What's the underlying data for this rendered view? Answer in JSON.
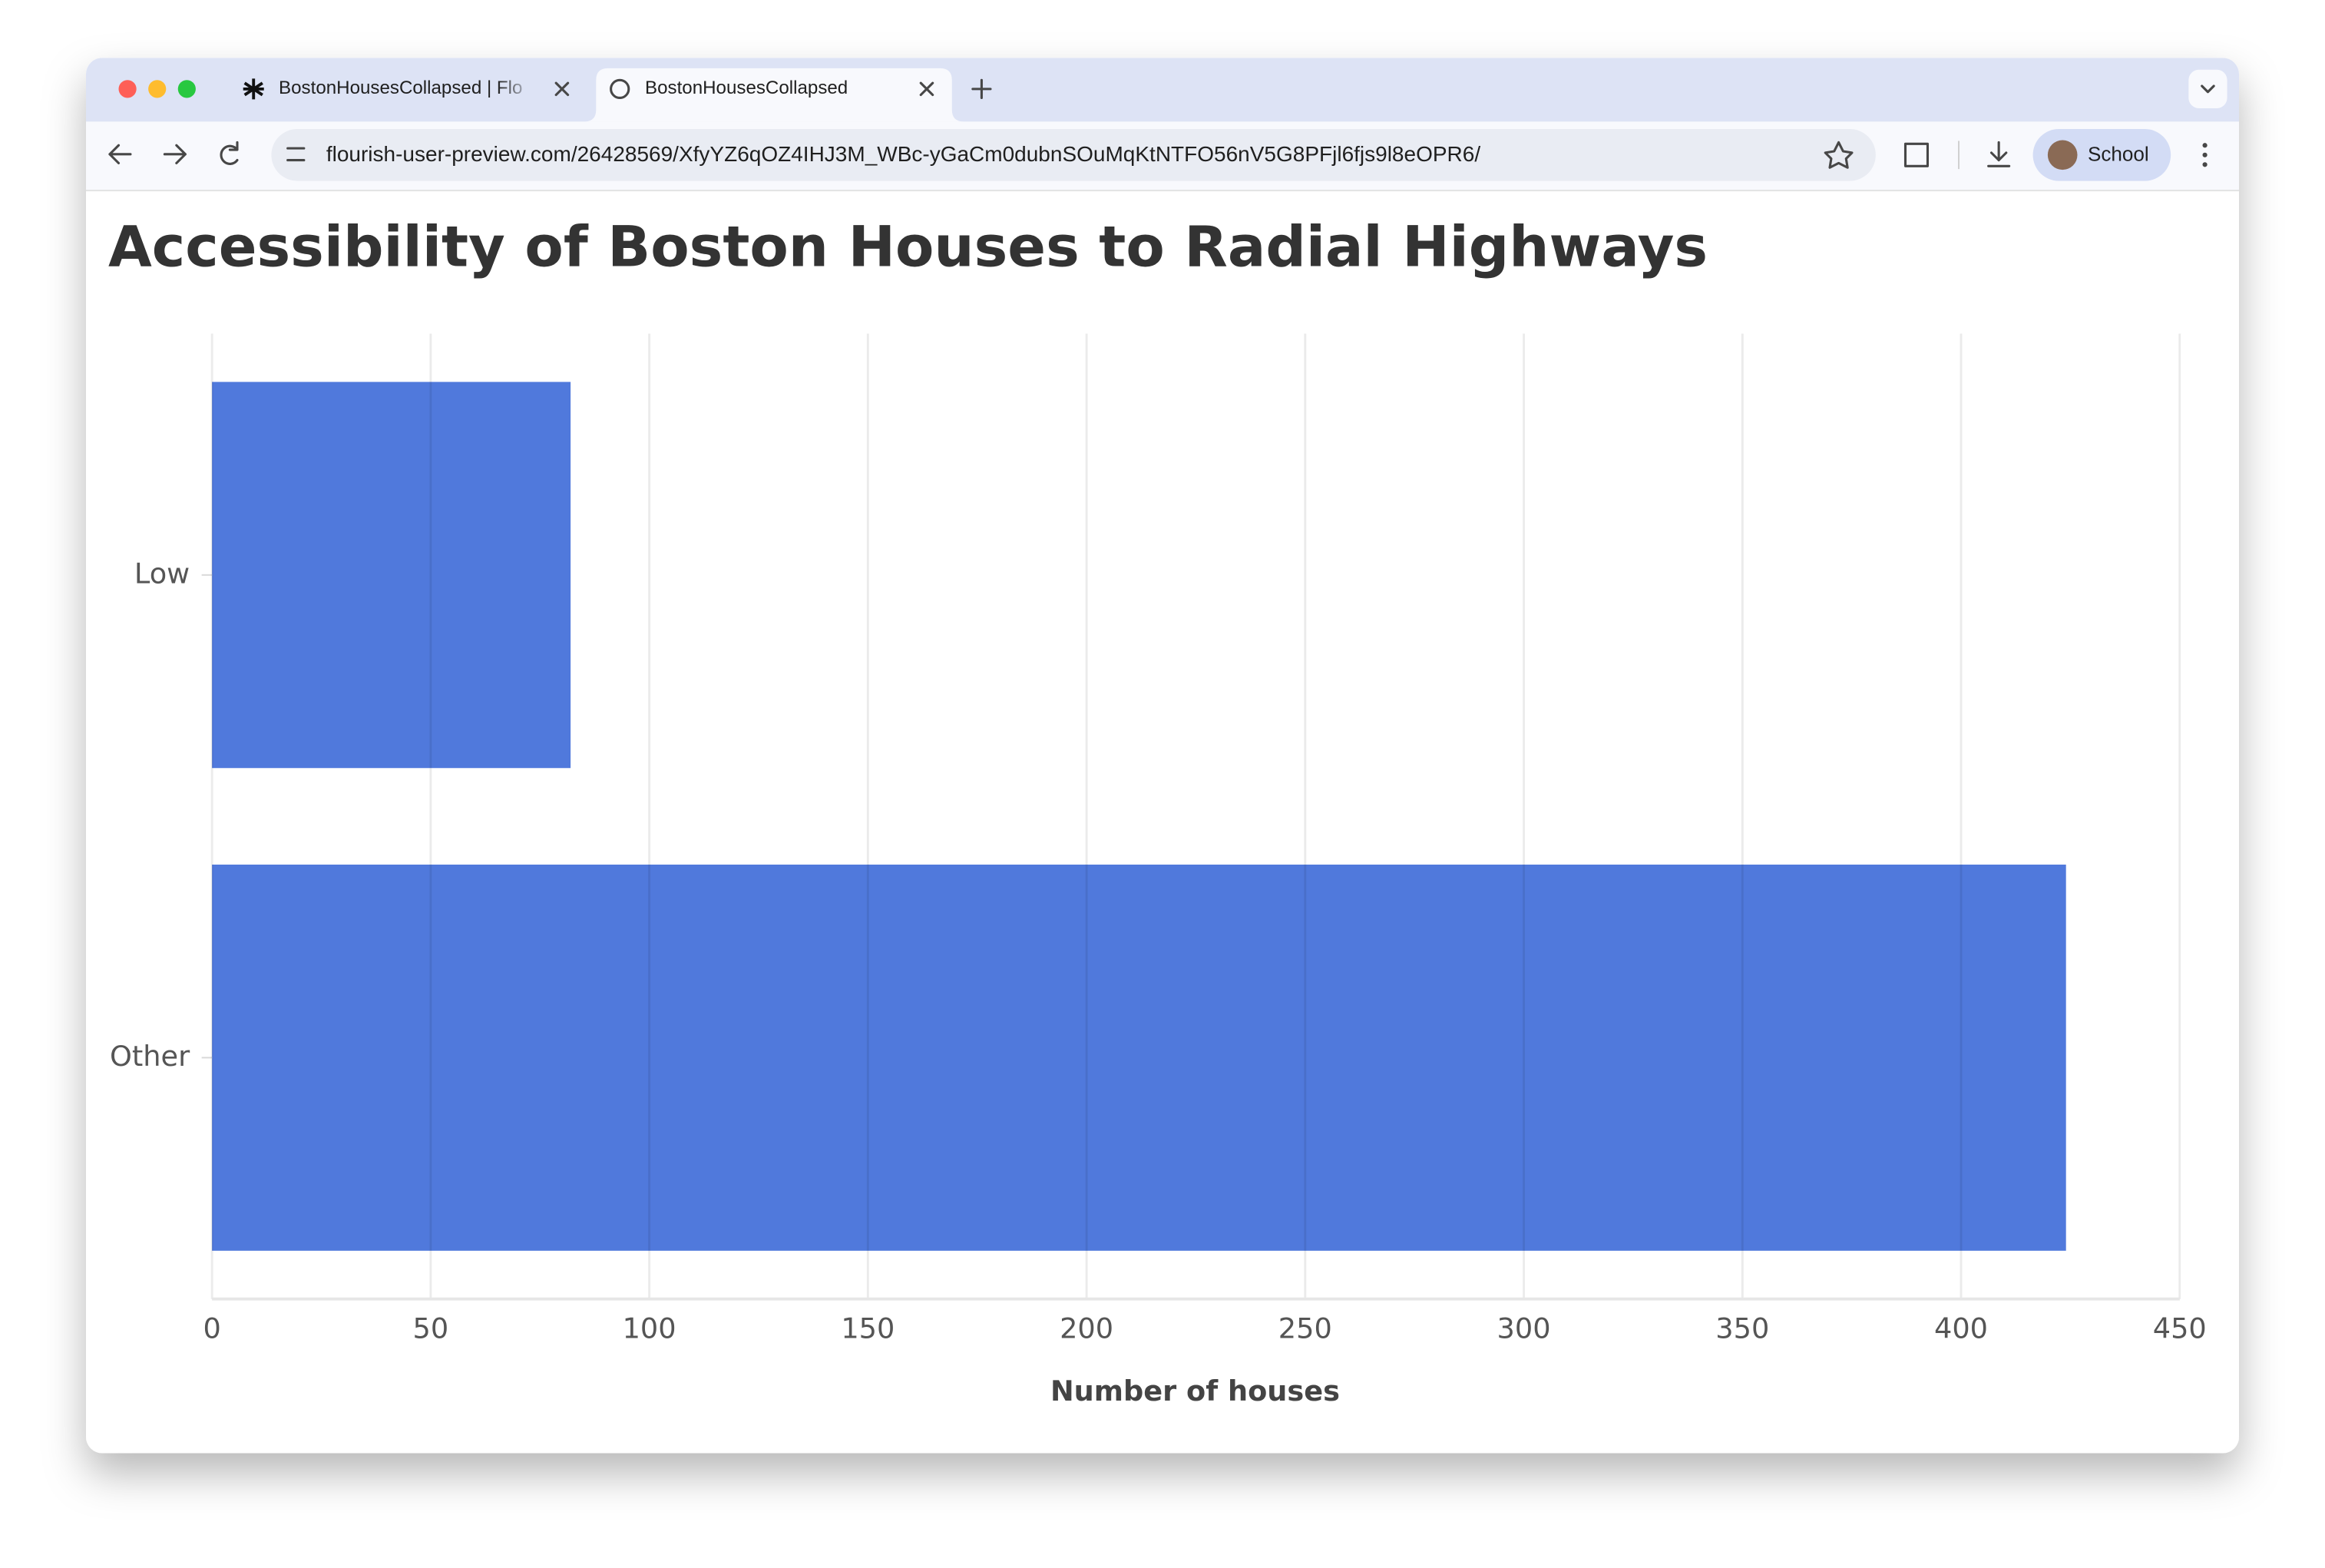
{
  "browser": {
    "tabs": [
      "BostonHousesCollapsed | Flo",
      "BostonHousesCollapsed"
    ],
    "url": "flourish-user-preview.com/26428569/XfyYZ6qOZ4IHJ3M_WBc-yGaCm0dubnSOuMqKtNTFO56nV5G8PFjl6fjs9l8eOPR6/",
    "profile": "School"
  },
  "chart_data": {
    "type": "hbar",
    "title": "Accessibility of Boston Houses to Radial Highways",
    "categories": [
      "Low",
      "Other"
    ],
    "values": [
      82,
      424
    ],
    "color": "#5079dc",
    "xlabel": "Number of houses",
    "xlim": [
      0,
      450
    ],
    "xticks": [
      0,
      50,
      100,
      150,
      200,
      250,
      300,
      350,
      400,
      450
    ],
    "grid": true
  }
}
